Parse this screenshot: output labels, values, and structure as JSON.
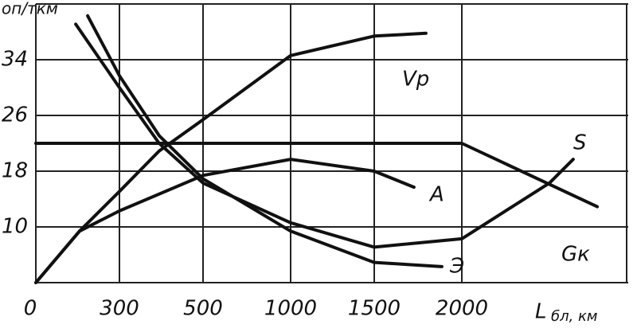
{
  "chart_data": {
    "type": "line",
    "y_label": "оп/ткм",
    "x_label": "L",
    "x_label_sub": "бл, км",
    "xlim": [
      0,
      2950
    ],
    "ylim": [
      2,
      42
    ],
    "xticks": [
      0,
      300,
      500,
      1000,
      1500,
      2000
    ],
    "yticks": [
      10,
      18,
      26,
      34
    ],
    "grid": true,
    "series": [
      {
        "name": "Vр",
        "color": "#111111",
        "x": [
          0,
          157,
          300,
          395,
          500,
          1000,
          1500,
          1795
        ],
        "values": [
          2,
          9.4,
          15.1,
          20.9,
          25.4,
          34.6,
          37.4,
          37.8
        ]
      },
      {
        "name": "A",
        "color": "#111111",
        "x": [
          0,
          157,
          300,
          500,
          1000,
          1500,
          1727
        ],
        "values": [
          2,
          9.4,
          12.3,
          17.4,
          19.7,
          18.0,
          15.7
        ]
      },
      {
        "name": "Э",
        "color": "#111111",
        "x": [
          186,
          300,
          395,
          500,
          1000,
          1500,
          1886
        ],
        "values": [
          40.3,
          31.7,
          23.1,
          16.9,
          9.4,
          4.9,
          4.3
        ]
      },
      {
        "name": "S",
        "color": "#111111",
        "x": [
          143,
          300,
          395,
          500,
          1000,
          1500,
          2000,
          2500,
          2636
        ],
        "values": [
          39.1,
          30,
          22,
          16.3,
          10.6,
          7.1,
          8.3,
          16.3,
          19.7
        ]
      },
      {
        "name": "Gк",
        "color": "#111111",
        "x": [
          0,
          2000,
          2773
        ],
        "values": [
          22,
          22,
          12.9
        ]
      }
    ]
  }
}
